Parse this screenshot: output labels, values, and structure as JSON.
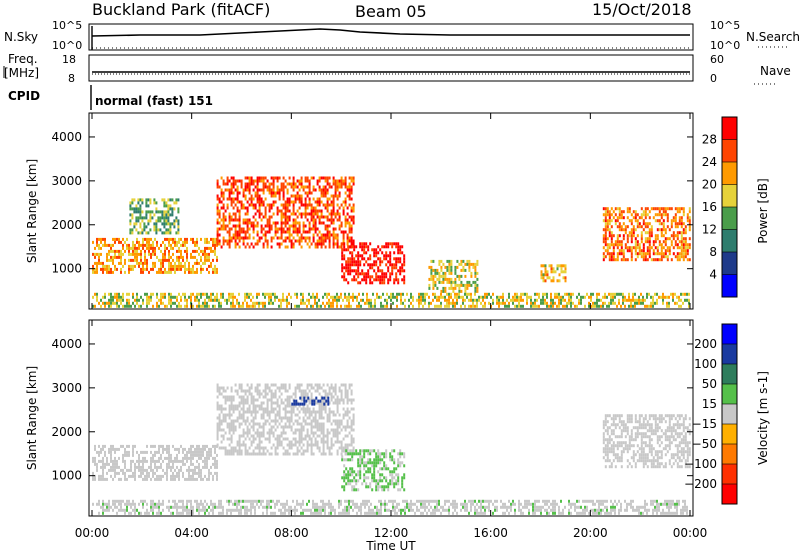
{
  "header": {
    "station": "Buckland Park (fitACF)",
    "beam": "Beam 05",
    "date": "15/Oct/2018"
  },
  "strips": {
    "nsky_label": "N.Sky",
    "nsky_ticks": [
      "10^5",
      "10^0"
    ],
    "nsearch_label": "N.Search",
    "freq_label": "Freq.",
    "freq_unit": "[MHz]",
    "freq_ticks": [
      "18",
      "8"
    ],
    "nave_ticks": [
      "60",
      "0"
    ],
    "nave_label": "Nave",
    "cpid_label": "CPID",
    "cpid_text": "normal (fast) 151"
  },
  "chart_data": [
    {
      "type": "heatmap",
      "title": "",
      "xlabel": "",
      "ylabel": "Slant Range [km]",
      "colorbar_label": "Power [dB]",
      "colorbar_ticks": [
        "28",
        "24",
        "20",
        "16",
        "12",
        "8",
        "4"
      ],
      "colorbar_range": [
        0,
        32
      ],
      "colorscale": [
        "#0000ff",
        "#1e3a8a",
        "#2e7d6e",
        "#4a9d4a",
        "#e6d23a",
        "#ff9a00",
        "#ff4400",
        "#ff0000"
      ],
      "ylim": [
        150,
        4500
      ],
      "yticks": [
        "4000",
        "3000",
        "2000",
        "1000"
      ],
      "xlim": [
        "00:00",
        "24:00"
      ],
      "echo_regions": [
        {
          "t_start": "00:00",
          "t_end": "05:00",
          "range_low_km": 900,
          "range_high_km": 1700,
          "power_db": 22
        },
        {
          "t_start": "01:30",
          "t_end": "03:30",
          "range_low_km": 1800,
          "range_high_km": 2600,
          "power_db": 14
        },
        {
          "t_start": "05:00",
          "t_end": "10:30",
          "range_low_km": 1500,
          "range_high_km": 3100,
          "power_db": 26
        },
        {
          "t_start": "10:00",
          "t_end": "12:30",
          "range_low_km": 700,
          "range_high_km": 1600,
          "power_db": 30
        },
        {
          "t_start": "13:30",
          "t_end": "15:30",
          "range_low_km": 500,
          "range_high_km": 1200,
          "power_db": 18
        },
        {
          "t_start": "18:00",
          "t_end": "19:00",
          "range_low_km": 700,
          "range_high_km": 1100,
          "power_db": 20
        },
        {
          "t_start": "20:30",
          "t_end": "24:00",
          "range_low_km": 1200,
          "range_high_km": 2400,
          "power_db": 24
        },
        {
          "t_start": "00:00",
          "t_end": "24:00",
          "range_low_km": 150,
          "range_high_km": 450,
          "power_db": 18
        }
      ]
    },
    {
      "type": "heatmap",
      "title": "",
      "xlabel": "Time UT",
      "ylabel": "Slant Range [km]",
      "colorbar_label": "Velocity [m s-1]",
      "colorbar_ticks": [
        "200",
        "100",
        "50",
        "15",
        "-15",
        "-50",
        "-100",
        "-200"
      ],
      "colorbar_range": [
        -250,
        250
      ],
      "colorscale": [
        "#0000ff",
        "#1a3aa0",
        "#2e7d5c",
        "#55c04a",
        "#c8c8c8",
        "#ffb000",
        "#ff7a00",
        "#ff3000",
        "#ff0000"
      ],
      "ylim": [
        150,
        4500
      ],
      "yticks": [
        "4000",
        "3000",
        "2000",
        "1000"
      ],
      "xticks": [
        "00:00",
        "04:00",
        "08:00",
        "12:00",
        "16:00",
        "20:00",
        "00:00"
      ],
      "xlim": [
        "00:00",
        "24:00"
      ],
      "echo_regions": [
        {
          "t_start": "00:00",
          "t_end": "05:00",
          "range_low_km": 900,
          "range_high_km": 1700,
          "velocity_ms": 0
        },
        {
          "t_start": "05:00",
          "t_end": "10:30",
          "range_low_km": 1500,
          "range_high_km": 3100,
          "velocity_ms": 0
        },
        {
          "t_start": "08:00",
          "t_end": "09:30",
          "range_low_km": 2600,
          "range_high_km": 2800,
          "velocity_ms": 150
        },
        {
          "t_start": "10:00",
          "t_end": "12:30",
          "range_low_km": 700,
          "range_high_km": 1600,
          "velocity_ms": 30
        },
        {
          "t_start": "20:30",
          "t_end": "24:00",
          "range_low_km": 1200,
          "range_high_km": 2400,
          "velocity_ms": 0
        },
        {
          "t_start": "00:00",
          "t_end": "24:00",
          "range_low_km": 150,
          "range_high_km": 450,
          "velocity_ms": 20
        }
      ]
    }
  ]
}
